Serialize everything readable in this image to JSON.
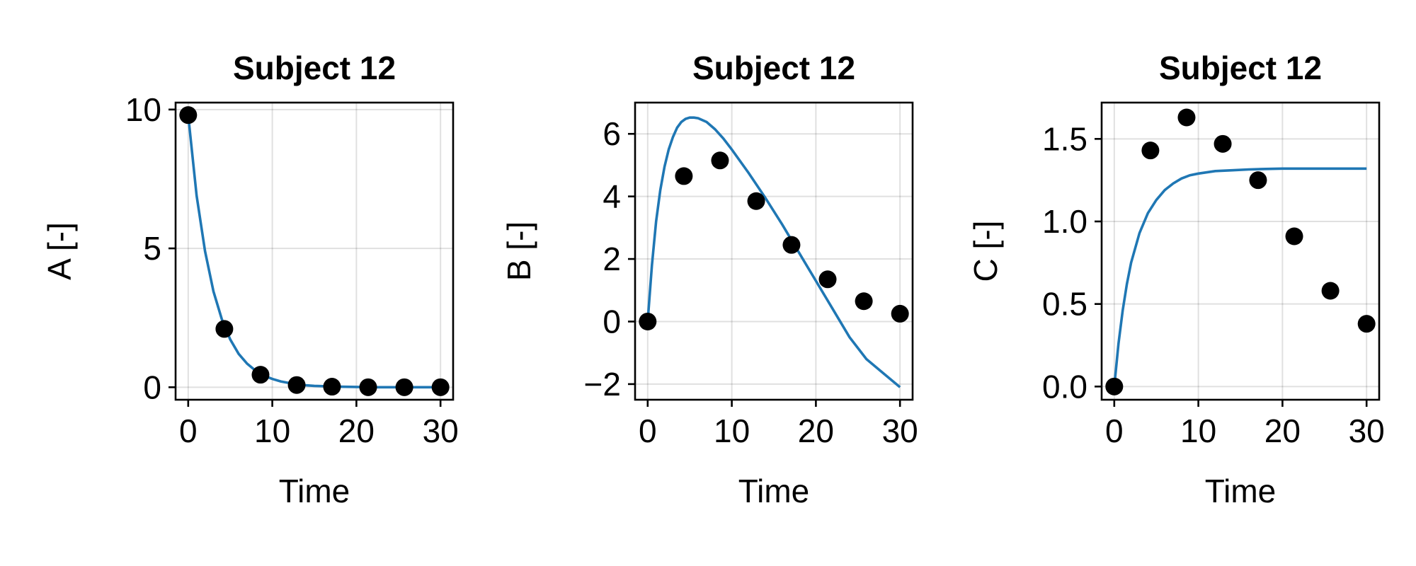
{
  "chart_data": [
    {
      "type": "line",
      "title": "Subject 12",
      "xlabel": "Time",
      "ylabel": "A [-]",
      "xlim": [
        -1.5,
        31.5
      ],
      "ylim": [
        -0.45,
        10.25
      ],
      "xticks": [
        0,
        10,
        20,
        30
      ],
      "xtick_labels": [
        "0",
        "10",
        "20",
        "30"
      ],
      "yticks": [
        0,
        5,
        10
      ],
      "ytick_labels": [
        "0",
        "5",
        "10"
      ],
      "grid": true,
      "series": [
        {
          "kind": "line",
          "color": "#1f77b4",
          "x": [
            0,
            1,
            2,
            3,
            4,
            5,
            6,
            7,
            8,
            9,
            10,
            11,
            12,
            13,
            14,
            15,
            16,
            18,
            20,
            22,
            25,
            30
          ],
          "y": [
            9.8,
            6.9,
            4.9,
            3.45,
            2.45,
            1.72,
            1.2,
            0.85,
            0.6,
            0.42,
            0.3,
            0.21,
            0.15,
            0.1,
            0.07,
            0.05,
            0.04,
            0.02,
            0.01,
            0.0,
            0.0,
            0.0
          ]
        },
        {
          "kind": "scatter",
          "color": "#000000",
          "x": [
            0,
            4.3,
            8.6,
            12.9,
            17.1,
            21.4,
            25.7,
            30
          ],
          "y": [
            9.8,
            2.1,
            0.45,
            0.08,
            0.02,
            0.0,
            0.0,
            0.0
          ]
        }
      ]
    },
    {
      "type": "line",
      "title": "Subject 12",
      "xlabel": "Time",
      "ylabel": "B [-]",
      "xlim": [
        -1.5,
        31.5
      ],
      "ylim": [
        -2.5,
        7.0
      ],
      "xticks": [
        0,
        10,
        20,
        30
      ],
      "xtick_labels": [
        "0",
        "10",
        "20",
        "30"
      ],
      "yticks": [
        -2,
        0,
        2,
        4,
        6
      ],
      "ytick_labels": [
        "−2",
        "0",
        "2",
        "4",
        "6"
      ],
      "grid": true,
      "series": [
        {
          "kind": "line",
          "color": "#1f77b4",
          "x": [
            0,
            0.5,
            1,
            1.5,
            2,
            2.5,
            3,
            3.5,
            4,
            4.5,
            5,
            5.5,
            6,
            7,
            8,
            9,
            10,
            12,
            14,
            16,
            18,
            20,
            22,
            24,
            26,
            28,
            30
          ],
          "y": [
            0,
            1.8,
            3.2,
            4.2,
            4.95,
            5.5,
            5.9,
            6.2,
            6.38,
            6.48,
            6.52,
            6.52,
            6.5,
            6.38,
            6.15,
            5.85,
            5.5,
            4.75,
            3.95,
            3.1,
            2.2,
            1.3,
            0.4,
            -0.5,
            -1.2,
            -1.65,
            -2.1
          ]
        },
        {
          "kind": "scatter",
          "color": "#000000",
          "x": [
            0,
            4.3,
            8.6,
            12.9,
            17.1,
            21.4,
            25.7,
            30
          ],
          "y": [
            0,
            4.65,
            5.15,
            3.85,
            2.45,
            1.35,
            0.65,
            0.25
          ]
        }
      ]
    },
    {
      "type": "line",
      "title": "Subject 12",
      "xlabel": "Time",
      "ylabel": "C [-]",
      "xlim": [
        -1.5,
        31.5
      ],
      "ylim": [
        -0.08,
        1.72
      ],
      "xticks": [
        0,
        10,
        20,
        30
      ],
      "xtick_labels": [
        "0",
        "10",
        "20",
        "30"
      ],
      "yticks": [
        0,
        0.5,
        1.0,
        1.5
      ],
      "ytick_labels": [
        "0.0",
        "0.5",
        "1.0",
        "1.5"
      ],
      "grid": true,
      "series": [
        {
          "kind": "line",
          "color": "#1f77b4",
          "x": [
            0,
            0.5,
            1,
            1.5,
            2,
            3,
            4,
            5,
            6,
            7,
            8,
            9,
            10,
            12,
            14,
            16,
            18,
            20,
            25,
            30
          ],
          "y": [
            0,
            0.26,
            0.46,
            0.62,
            0.75,
            0.93,
            1.05,
            1.13,
            1.19,
            1.23,
            1.26,
            1.28,
            1.29,
            1.305,
            1.31,
            1.315,
            1.318,
            1.32,
            1.32,
            1.32
          ]
        },
        {
          "kind": "scatter",
          "color": "#000000",
          "x": [
            0,
            4.3,
            8.6,
            12.9,
            17.1,
            21.4,
            25.7,
            30
          ],
          "y": [
            0,
            1.43,
            1.63,
            1.47,
            1.25,
            0.91,
            0.58,
            0.38
          ]
        }
      ]
    }
  ]
}
